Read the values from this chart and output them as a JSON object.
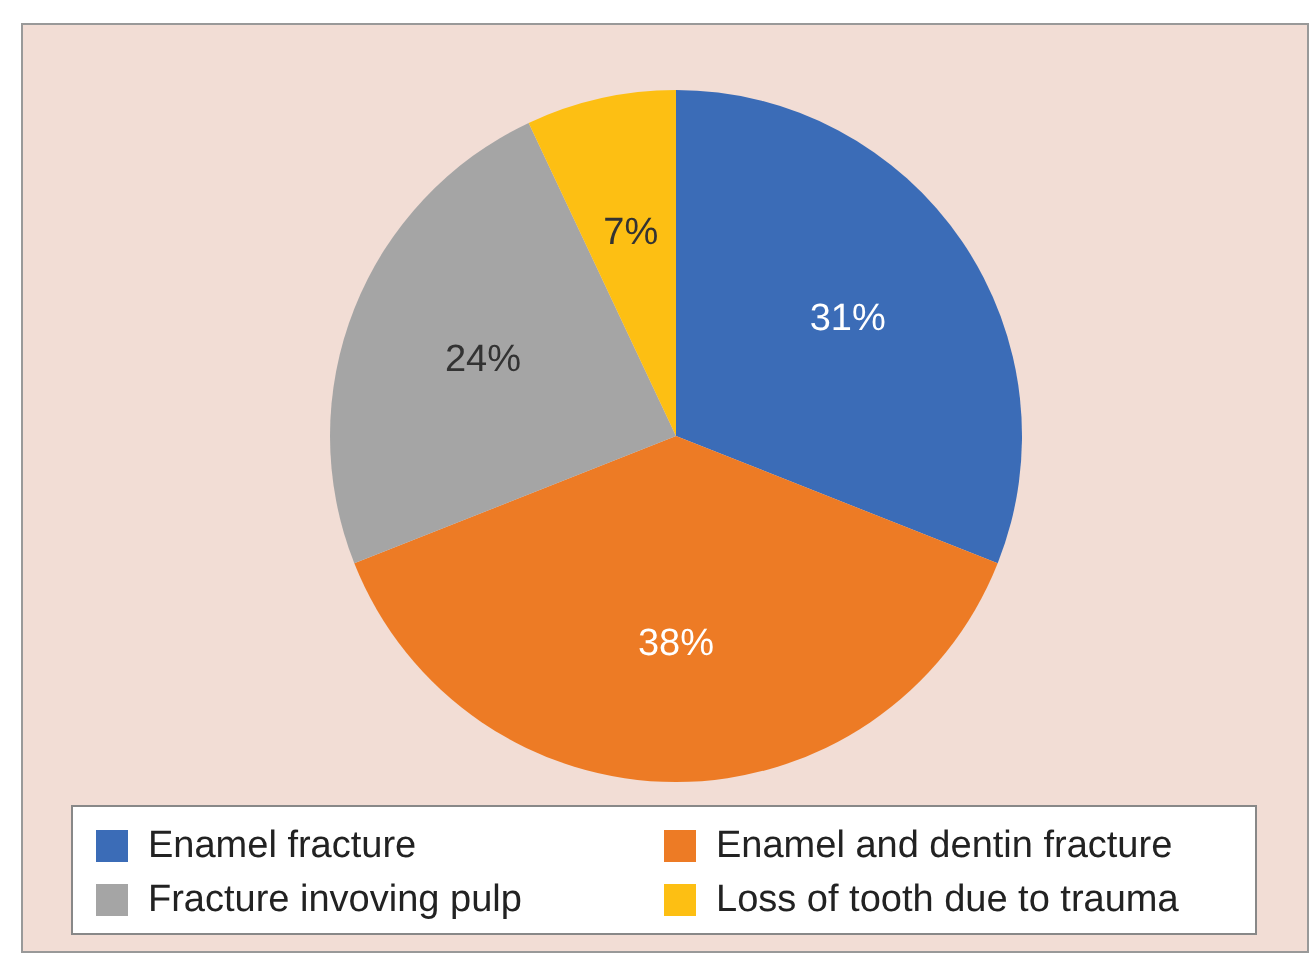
{
  "chart_data": {
    "type": "pie",
    "categories": [
      "Enamel fracture",
      "Enamel and dentin fracture",
      "Fracture invoving pulp",
      "Loss of tooth due to trauma"
    ],
    "values": [
      31,
      38,
      24,
      7
    ],
    "colors": [
      "#3b6cb7",
      "#ed7b25",
      "#a5a5a5",
      "#fdbf13"
    ],
    "value_labels": [
      "31%",
      "38%",
      "24%",
      "7%"
    ],
    "legend": "bottom"
  }
}
